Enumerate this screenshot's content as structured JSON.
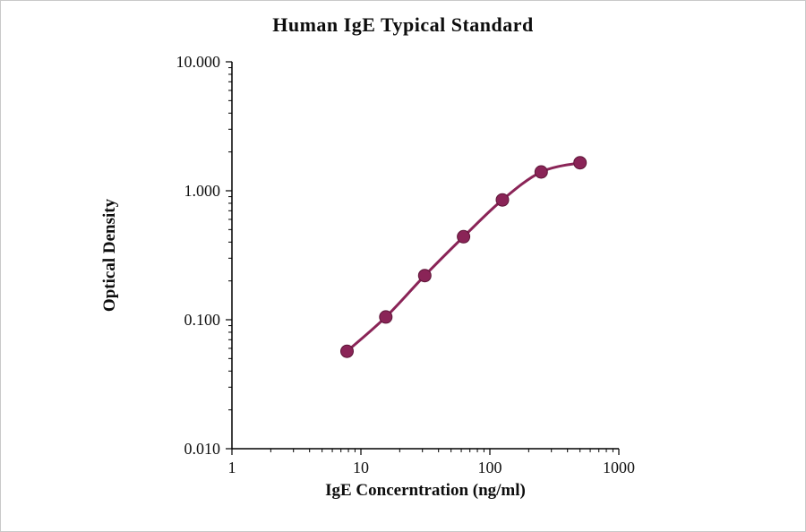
{
  "chart_data": {
    "type": "line",
    "title": "Human IgE Typical Standard",
    "xlabel": "IgE Concerntration (ng/ml)",
    "ylabel": "Optical Density",
    "xscale": "log",
    "yscale": "log",
    "xlim": [
      1,
      1000
    ],
    "ylim": [
      0.01,
      10
    ],
    "grid": false,
    "legend": false,
    "x": [
      7.8,
      15.6,
      31.25,
      62.5,
      125,
      250,
      500
    ],
    "y": [
      0.057,
      0.105,
      0.22,
      0.44,
      0.85,
      1.4,
      1.65
    ],
    "x_tick_values": [
      1,
      10,
      100,
      1000
    ],
    "x_tick_labels": [
      "1",
      "10",
      "100",
      "1000"
    ],
    "y_tick_values": [
      10,
      1,
      0.1,
      0.01
    ],
    "y_tick_labels": [
      "10.000",
      "1.000",
      "0.100",
      "0.010"
    ],
    "line_color": "#8A2457",
    "marker_color": "#8A2457",
    "marker_edge_color": "#5E1638",
    "axis_color": "#000000"
  }
}
